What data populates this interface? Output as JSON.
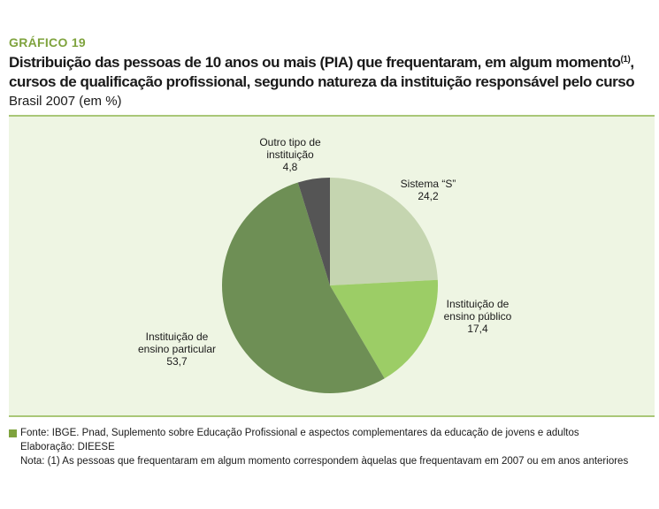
{
  "header": {
    "label": "GRÁFICO 19",
    "title_line1": "Distribuição das pessoas de 10 anos ou mais (PIA) que frequentaram, em algum momento",
    "title_sup": "(1)",
    "title_comma": ",",
    "title_line2": "cursos de qualificação profissional, segundo natureza da instituição responsável pelo curso",
    "subtitle": "Brasil 2007 (em %)"
  },
  "chart_data": {
    "type": "pie",
    "slices": [
      {
        "label_lines": [
          "Sistema “S”"
        ],
        "value": 24.2,
        "value_text": "24,2",
        "color": "#c5d5b0"
      },
      {
        "label_lines": [
          "Instituição de",
          "ensino público"
        ],
        "value": 17.4,
        "value_text": "17,4",
        "color": "#9ccd66"
      },
      {
        "label_lines": [
          "Instituição de",
          "ensino particular"
        ],
        "value": 53.7,
        "value_text": "53,7",
        "color": "#6e8f55"
      },
      {
        "label_lines": [
          "Outro tipo de",
          "instituição"
        ],
        "value": 4.8,
        "value_text": "4,8",
        "color": "#555555"
      }
    ],
    "start": "12 o'clock",
    "direction": "clockwise"
  },
  "footer": {
    "source": "Fonte: IBGE. Pnad, Suplemento sobre Educação Profissional e aspectos complementares da educação de jovens e adultos",
    "elaboration": "Elaboração: DIEESE",
    "note": "Nota: (1) As pessoas que frequentaram em algum momento correspondem àquelas que frequentavam em 2007 ou em anos anteriores"
  },
  "colors": {
    "accent": "#7fa33e",
    "panel_bg": "#eef5e3",
    "panel_border": "#a9c777"
  }
}
